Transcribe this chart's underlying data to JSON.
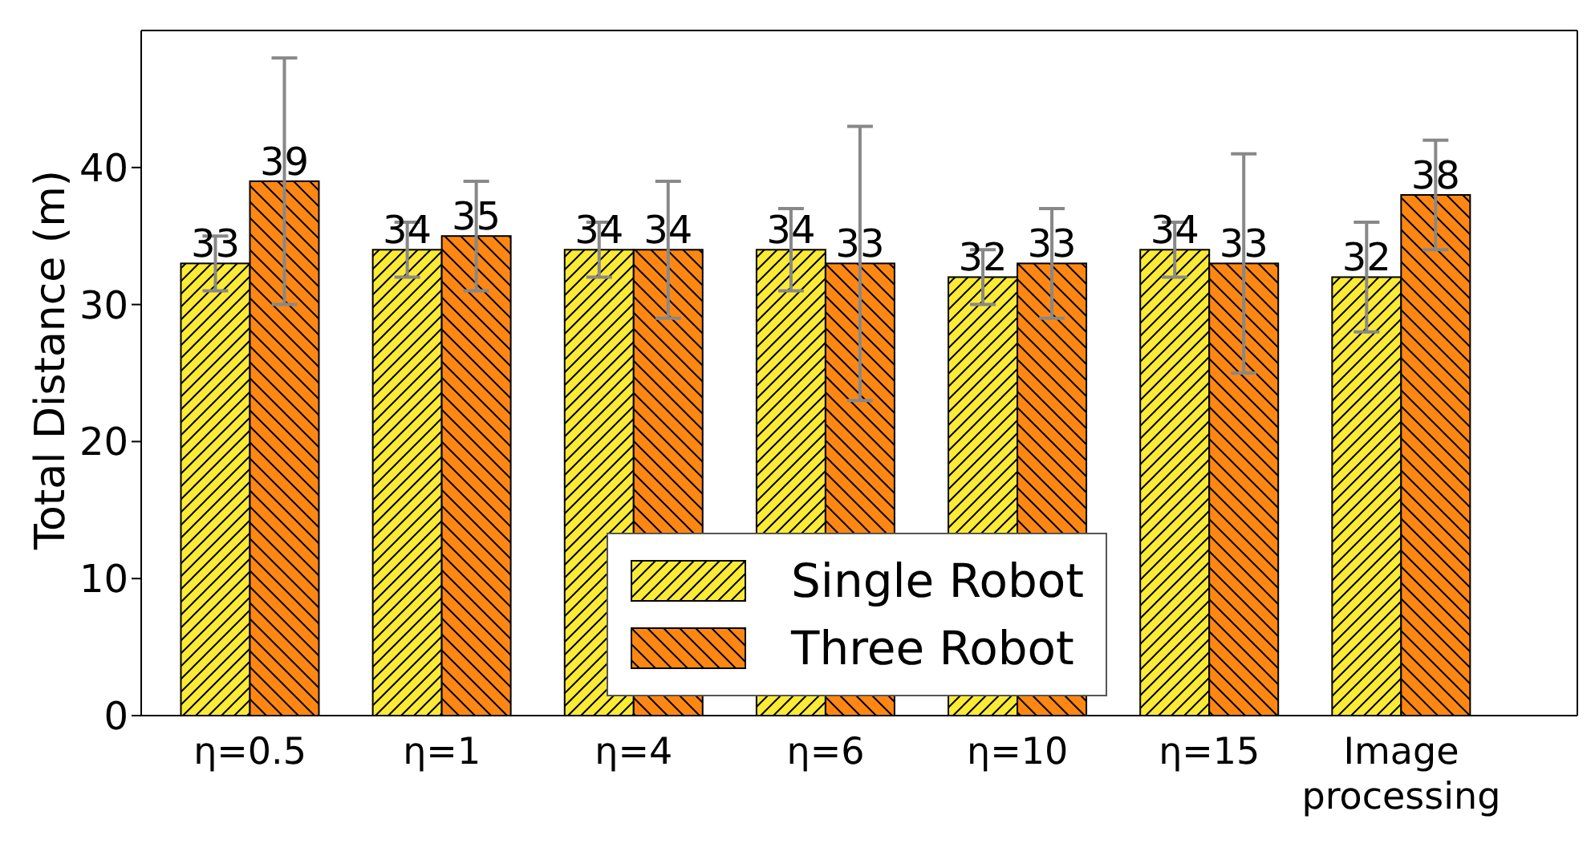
{
  "chart_data": {
    "type": "bar",
    "ylabel": "Total Distance (m)",
    "categories": [
      "η=0.5",
      "η=1",
      "η=4",
      "η=6",
      "η=10",
      "η=15",
      "Image processing"
    ],
    "series": [
      {
        "name": "Single Robot",
        "color": "#fbea36",
        "values": [
          33,
          34,
          34,
          34,
          32,
          34,
          32
        ],
        "errors": [
          2,
          2,
          2,
          3,
          2,
          2,
          4
        ]
      },
      {
        "name": "Three Robot",
        "color": "#fd8712",
        "values": [
          39,
          35,
          34,
          33,
          33,
          33,
          38
        ],
        "errors": [
          9,
          4,
          5,
          10,
          4,
          8,
          4
        ]
      }
    ],
    "ylim": [
      0,
      50
    ],
    "yticks": [
      0,
      10,
      20,
      30,
      40
    ],
    "data_labels": true,
    "legend": "bottom",
    "grid": false
  }
}
